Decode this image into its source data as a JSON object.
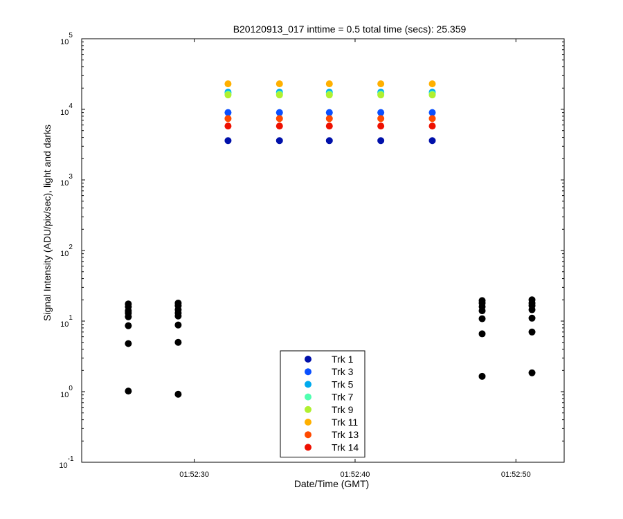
{
  "chart_data": {
    "type": "scatter",
    "title": "B20120913_017 inttime = 0.5 total time (secs): 25.359",
    "xlabel": "Date/Time (GMT)",
    "ylabel": "Signal Intensity (ADU/pix/sec), light and darks",
    "y_scale": "log",
    "ylim": [
      0.1,
      100000
    ],
    "y_ticks": [
      {
        "base": "10",
        "exp": "-1",
        "value": 0.1
      },
      {
        "base": "10",
        "exp": "0",
        "value": 1
      },
      {
        "base": "10",
        "exp": "1",
        "value": 10
      },
      {
        "base": "10",
        "exp": "2",
        "value": 100
      },
      {
        "base": "10",
        "exp": "3",
        "value": 1000
      },
      {
        "base": "10",
        "exp": "4",
        "value": 10000
      },
      {
        "base": "10",
        "exp": "5",
        "value": 100000
      }
    ],
    "xlim": [
      "01:52:23",
      "01:52:53"
    ],
    "x_ticks": [
      "01:52:30",
      "01:52:40",
      "01:52:50"
    ],
    "grid": false,
    "legend_position": "bottom-center",
    "light_times": [
      "01:52:32.1",
      "01:52:35.3",
      "01:52:38.4",
      "01:52:41.6",
      "01:52:44.8"
    ],
    "series": [
      {
        "name": "Trk 1",
        "color": "#0010aa",
        "values": [
          3600,
          3600,
          3600,
          3600,
          3600
        ]
      },
      {
        "name": "Trk 3",
        "color": "#0a50ff",
        "values": [
          9000,
          9000,
          9000,
          9000,
          9000
        ]
      },
      {
        "name": "Trk 5",
        "color": "#00aaee",
        "values": [
          17500,
          17500,
          17500,
          17500,
          17500
        ]
      },
      {
        "name": "Trk 7",
        "color": "#50ffb0",
        "values": [
          16500,
          16500,
          16500,
          16500,
          16500
        ]
      },
      {
        "name": "Trk 9",
        "color": "#b0f030",
        "values": [
          16000,
          16000,
          16000,
          16000,
          16000
        ]
      },
      {
        "name": "Trk 11",
        "color": "#ffb000",
        "values": [
          23000,
          23000,
          23000,
          23000,
          23000
        ]
      },
      {
        "name": "Trk 13",
        "color": "#ff4a00",
        "values": [
          7400,
          7400,
          7400,
          7400,
          7400
        ]
      },
      {
        "name": "Trk 14",
        "color": "#ee1000",
        "values": [
          5800,
          5800,
          5800,
          5800,
          5800
        ]
      }
    ],
    "darks": {
      "color": "#000000",
      "groups": [
        {
          "time": "01:52:25.9",
          "values": [
            17.5,
            16,
            14,
            13,
            11.5,
            8.6,
            4.8,
            1.02
          ]
        },
        {
          "time": "01:52:29.0",
          "values": [
            18,
            16.5,
            14.5,
            13,
            11.8,
            8.8,
            5.0,
            0.92
          ]
        },
        {
          "time": "01:52:47.9",
          "values": [
            19.5,
            18,
            16,
            14,
            10.8,
            6.6,
            1.65
          ]
        },
        {
          "time": "01:52:51.0",
          "values": [
            20,
            18,
            16.5,
            14.5,
            11,
            7.0,
            1.85
          ]
        }
      ]
    }
  }
}
